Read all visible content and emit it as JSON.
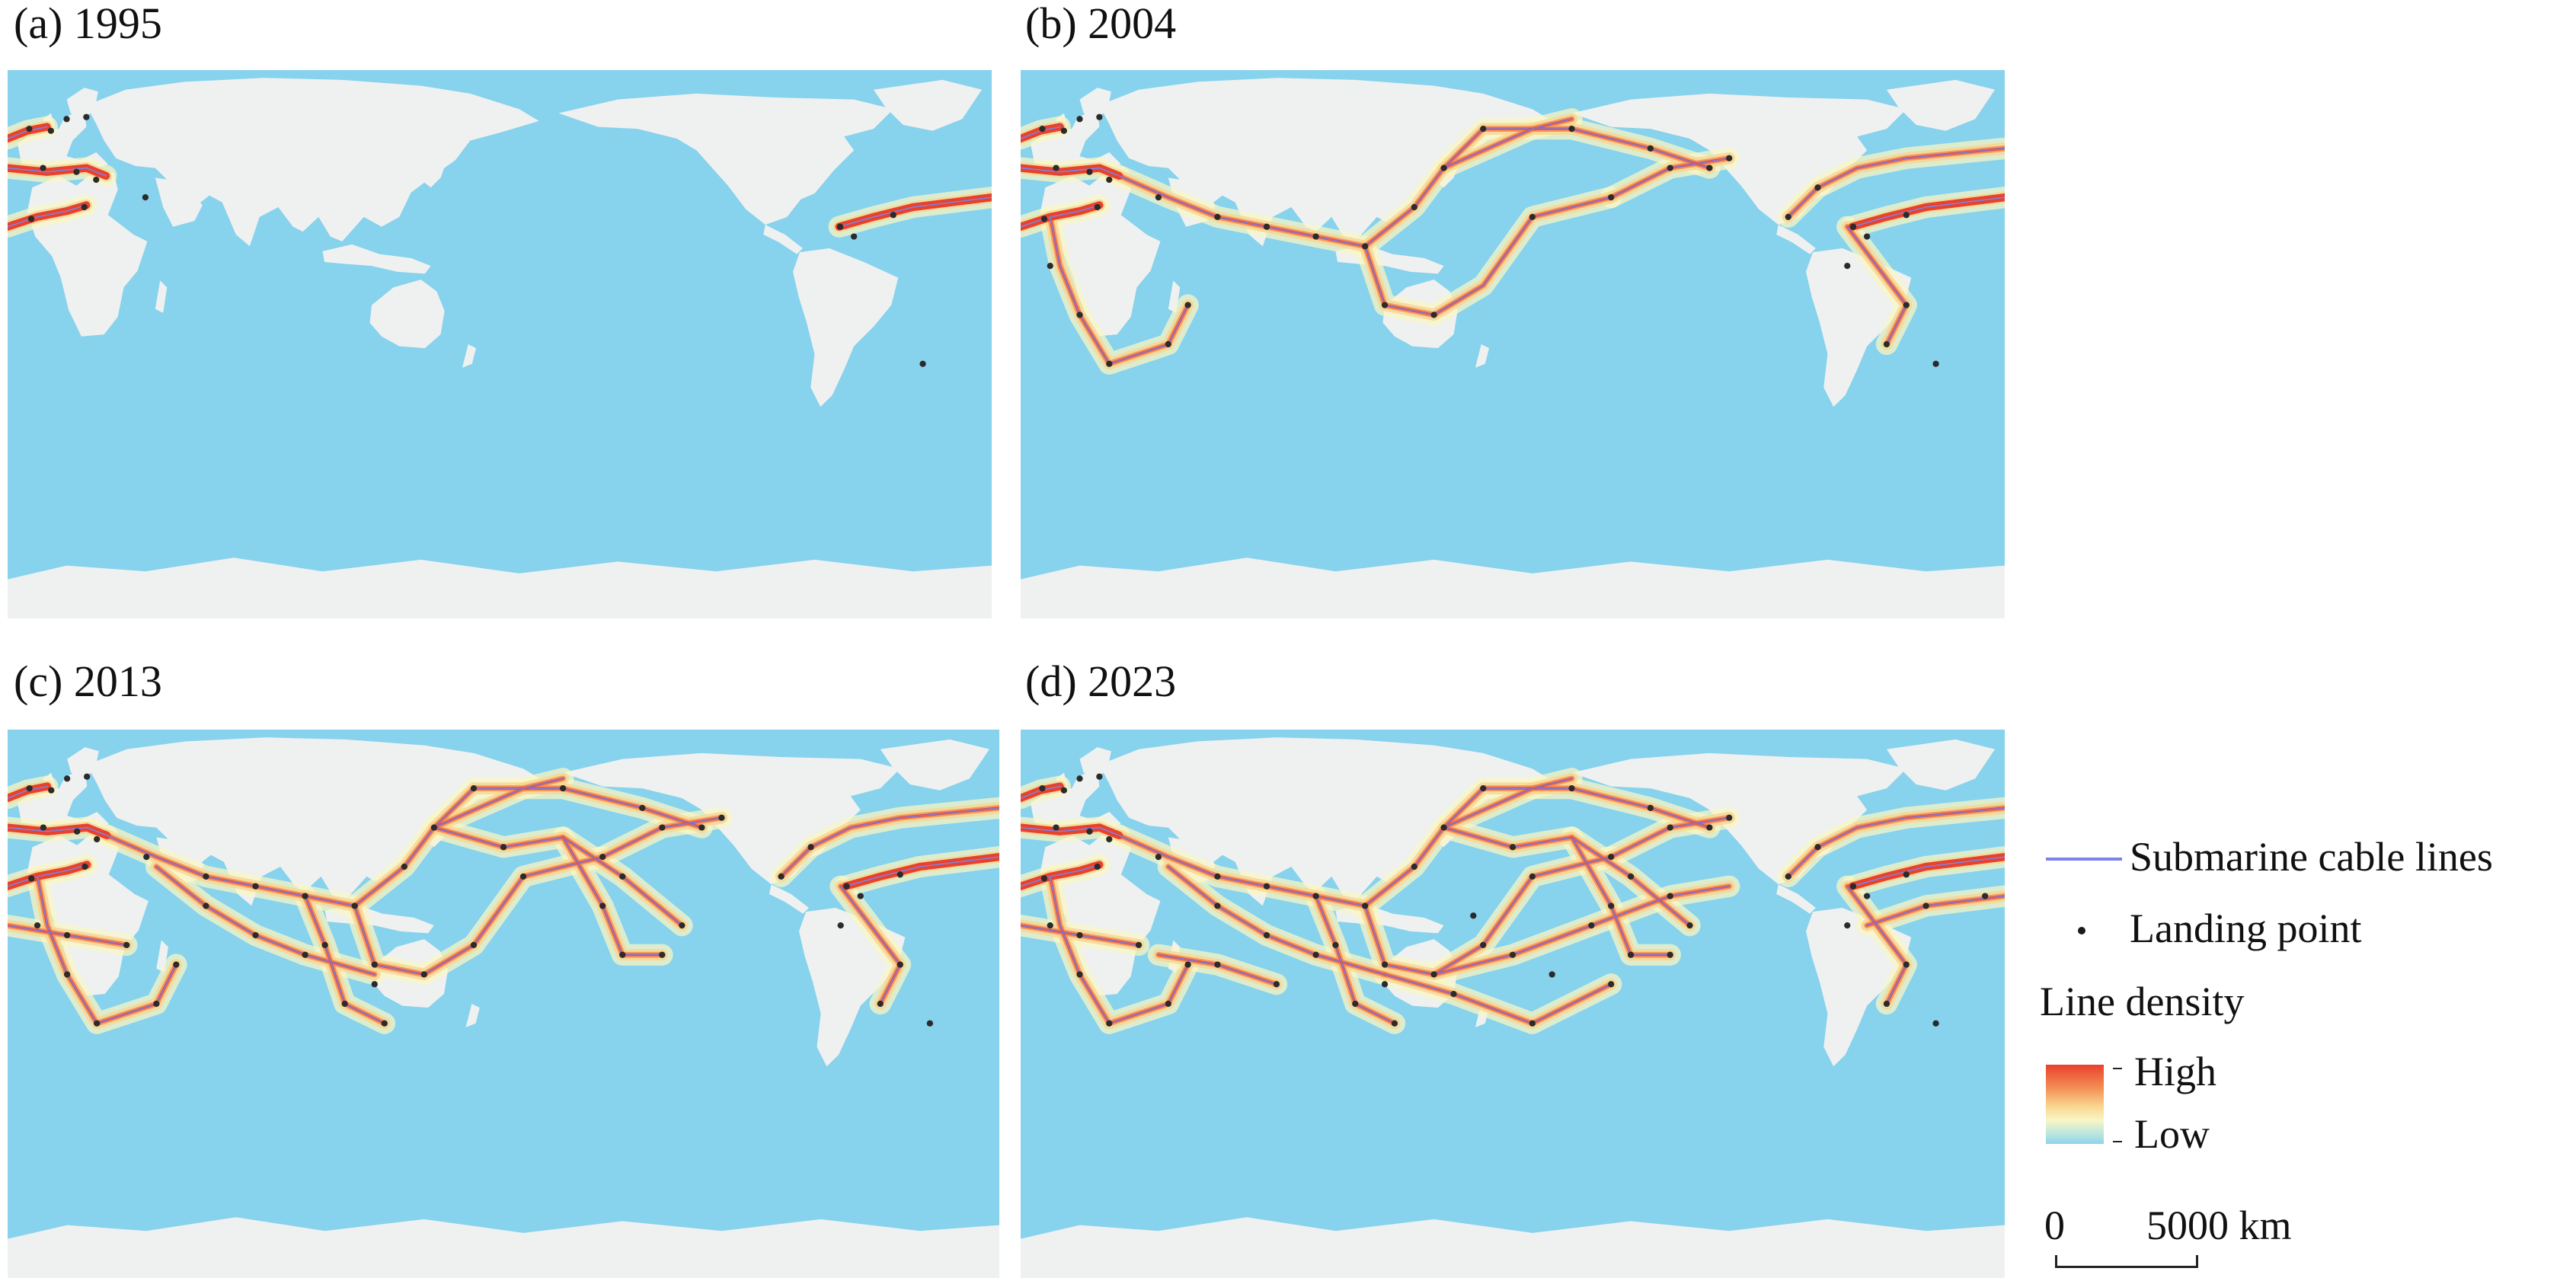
{
  "panels": [
    {
      "label": "(a) 1995",
      "level": 0
    },
    {
      "label": "(b) 2004",
      "level": 1
    },
    {
      "label": "(c) 2013",
      "level": 2
    },
    {
      "label": "(d) 2023",
      "level": 3
    }
  ],
  "legend": {
    "cable_label": "Submarine cable lines",
    "landing_label": "Landing point",
    "density_title": "Line density",
    "high_label": "High",
    "low_label": "Low",
    "cable_color": "#7b83e8",
    "density_colors": [
      "#e8412c",
      "#f38b53",
      "#f9d48e",
      "#f8f6c5",
      "#bfe7dd",
      "#8fd3eb"
    ]
  },
  "scale": {
    "start_label": "0",
    "end_label": "5000 km"
  },
  "colors": {
    "ocean": "#87d2ec",
    "land": "#eff1f1",
    "landing_point": "#2b2b2b"
  }
}
